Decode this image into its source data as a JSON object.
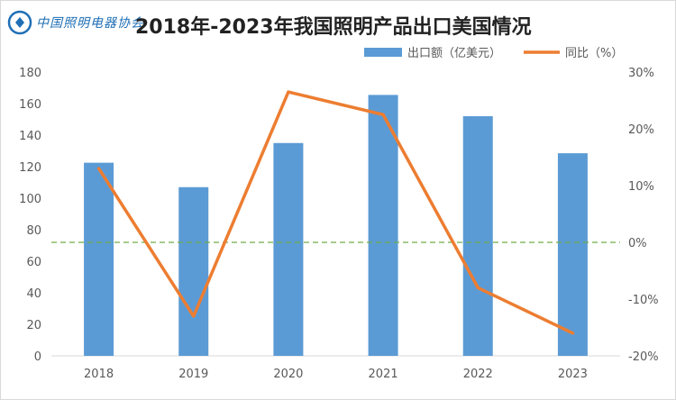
{
  "header": {
    "logo_text": "中国照明电器协会",
    "title": "2018年-2023年我国照明产品出口美国情况"
  },
  "colors": {
    "bar": "#5b9bd5",
    "line": "#ed7d31",
    "zero_line": "#70ad47",
    "logo": "#1f6fb5"
  },
  "chart_data": {
    "type": "bar",
    "categories": [
      "2018",
      "2019",
      "2020",
      "2021",
      "2022",
      "2023"
    ],
    "series": [
      {
        "name": "出口额（亿美元）",
        "type": "bar",
        "axis": "left",
        "values": [
          122.5,
          107,
          135,
          165.5,
          152,
          128.5
        ]
      },
      {
        "name": "同比（%）",
        "type": "line",
        "axis": "right",
        "values": [
          13,
          -13,
          26.5,
          22.5,
          -8,
          -16
        ]
      }
    ],
    "y_left": {
      "min": 0,
      "max": 180,
      "step": 20,
      "ticks": [
        "0",
        "20",
        "40",
        "60",
        "80",
        "100",
        "120",
        "140",
        "160",
        "180"
      ]
    },
    "y_right": {
      "min": -20,
      "max": 30,
      "step": 10,
      "ticks": [
        "-20%",
        "-10%",
        "0%",
        "10%",
        "20%",
        "30%"
      ]
    },
    "zero_line": "dashed",
    "grid": false,
    "legend_position": "top-right"
  }
}
